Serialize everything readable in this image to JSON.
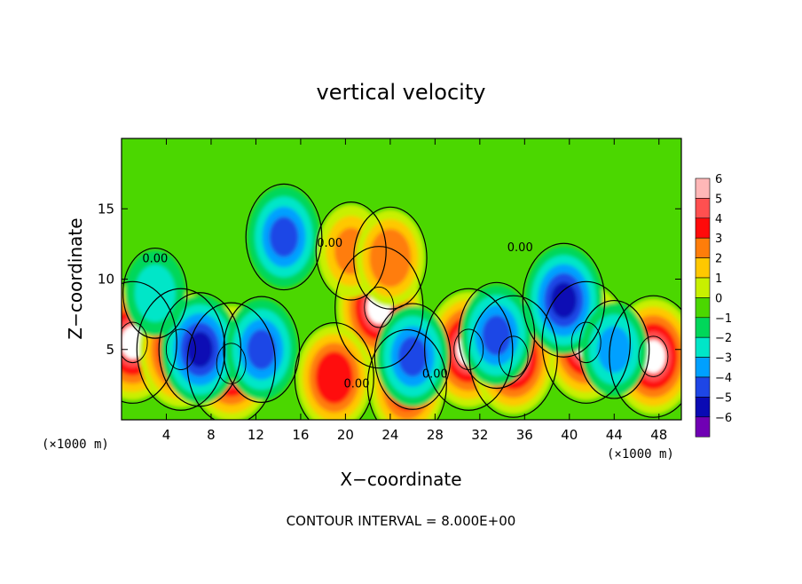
{
  "chart_data": {
    "type": "heatmap",
    "title": "vertical velocity",
    "xlabel": "X−coordinate",
    "ylabel": "Z−coordinate",
    "x_unit": "(×1000 m)",
    "x_unit_right": "(×1000 m)",
    "footer": "CONTOUR INTERVAL = 8.000E+00",
    "xlim": [
      0,
      50
    ],
    "ylim": [
      0,
      20
    ],
    "x_ticks": [
      4,
      8,
      12,
      16,
      20,
      24,
      28,
      32,
      36,
      40,
      44,
      48
    ],
    "y_ticks": [
      5,
      10,
      15
    ],
    "contour_labels": [
      {
        "text": "0.00",
        "x": 3.0,
        "y": 11.2
      },
      {
        "text": "0.00",
        "x": 18.6,
        "y": 12.3
      },
      {
        "text": "0.00",
        "x": 35.6,
        "y": 12.0
      },
      {
        "text": "0.00",
        "x": 21.0,
        "y": 2.3
      },
      {
        "text": "0.00",
        "x": 28.0,
        "y": 3.0
      }
    ],
    "colorbar": {
      "min": -6,
      "max": 6,
      "labels": [
        "6",
        "5",
        "4",
        "3",
        "2",
        "1",
        "0",
        "−1",
        "−2",
        "−3",
        "−4",
        "−5",
        "−6"
      ],
      "colors": [
        "#ffb7b7",
        "#ff5050",
        "#ff0a0a",
        "#ff7d0a",
        "#ffc800",
        "#c8f000",
        "#4bd700",
        "#00d75a",
        "#00e6c8",
        "#00a0ff",
        "#1e46e6",
        "#0a0ab4",
        "#7000b4"
      ]
    },
    "cells": [
      {
        "x": 1.0,
        "z": 5.5,
        "w": 6
      },
      {
        "x": 5.3,
        "z": 5.0,
        "w": 6
      },
      {
        "x": 9.8,
        "z": 4.0,
        "w": 6
      },
      {
        "x": 23.0,
        "z": 8.0,
        "w": 6
      },
      {
        "x": 31.0,
        "z": 5.0,
        "w": 6
      },
      {
        "x": 41.5,
        "z": 5.5,
        "w": 6
      },
      {
        "x": 47.5,
        "z": 4.5,
        "w": 6
      },
      {
        "x": 19.0,
        "z": 3.0,
        "w": 4.5
      },
      {
        "x": 25.5,
        "z": 2.5,
        "w": 4.5
      },
      {
        "x": 35.0,
        "z": 4.5,
        "w": 6
      },
      {
        "x": 14.5,
        "z": 13.0,
        "w": -4
      },
      {
        "x": 7.0,
        "z": 5.0,
        "w": -5
      },
      {
        "x": 12.5,
        "z": 5.0,
        "w": -4
      },
      {
        "x": 39.5,
        "z": 8.5,
        "w": -5
      },
      {
        "x": 33.5,
        "z": 6.0,
        "w": -4
      },
      {
        "x": 26.0,
        "z": 4.5,
        "w": -4
      },
      {
        "x": 20.5,
        "z": 12.0,
        "w": 3
      },
      {
        "x": 24.0,
        "z": 11.5,
        "w": 3.5
      },
      {
        "x": 44.0,
        "z": 5.0,
        "w": -3
      },
      {
        "x": 3.0,
        "z": 9.0,
        "w": -2
      }
    ]
  }
}
